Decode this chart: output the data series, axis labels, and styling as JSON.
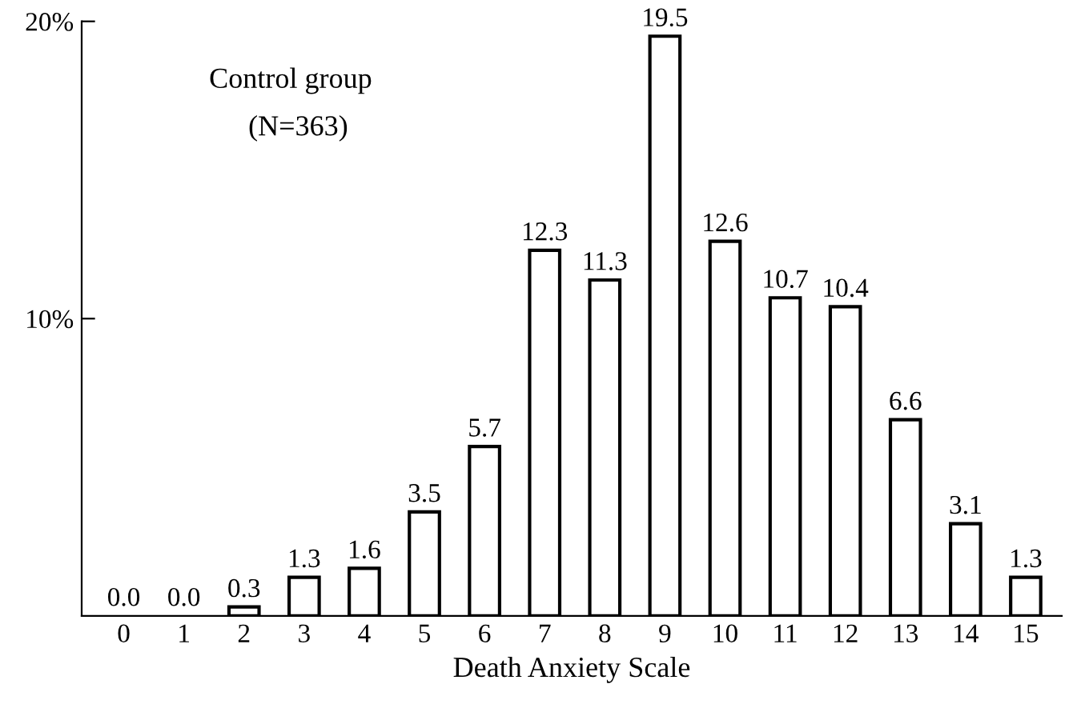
{
  "chart_data": {
    "type": "bar",
    "xlabel": "Death Anxiety Scale",
    "categories": [
      "0",
      "1",
      "2",
      "3",
      "4",
      "5",
      "6",
      "7",
      "8",
      "9",
      "10",
      "11",
      "12",
      "13",
      "14",
      "15"
    ],
    "values": [
      0.0,
      0.0,
      0.3,
      1.3,
      1.6,
      3.5,
      5.7,
      12.3,
      11.3,
      19.5,
      12.6,
      10.7,
      10.4,
      6.6,
      3.1,
      1.3
    ],
    "value_labels": [
      "0.0",
      "0.0",
      "0.3",
      "1.3",
      "1.6",
      "3.5",
      "5.7",
      "12.3",
      "11.3",
      "19.5",
      "12.6",
      "10.7",
      "10.4",
      "6.6",
      "3.1",
      "1.3"
    ],
    "color": "#ffffff",
    "ylim": [
      0,
      20
    ],
    "yticks": [
      {
        "value": 10,
        "label": "10%"
      },
      {
        "value": 20,
        "label": "20%"
      }
    ],
    "annotations": [
      "Control group",
      "(N=363)"
    ],
    "grid": false,
    "legend": false
  }
}
